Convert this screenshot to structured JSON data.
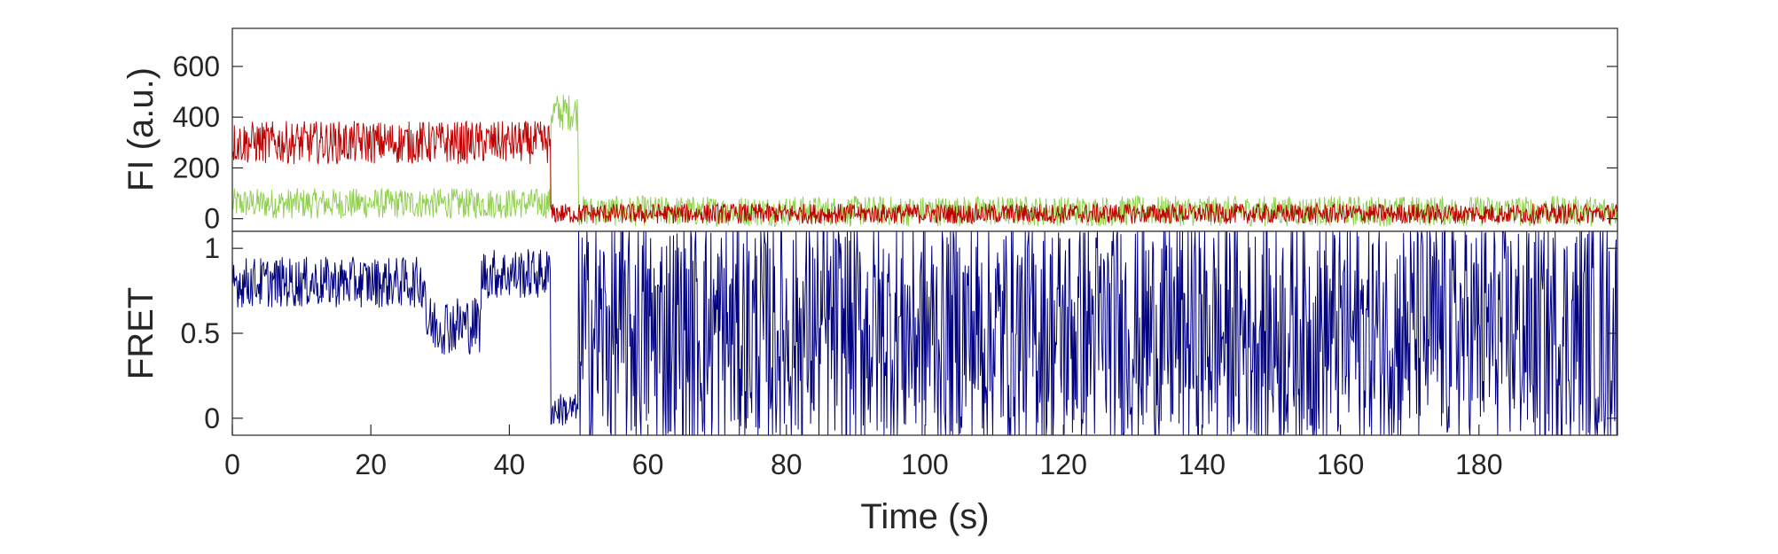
{
  "chart_data": [
    {
      "type": "line",
      "ylabel": "FI (a.u.)",
      "xlim": [
        0,
        200
      ],
      "ylim": [
        -50,
        750
      ],
      "yticks": [
        0,
        200,
        400,
        600
      ],
      "series": [
        {
          "color": "#92d050",
          "segments": [
            {
              "x_start": 0,
              "x_end": 46,
              "mean": 60,
              "noise": 120
            },
            {
              "x_start": 46,
              "x_end": 50,
              "mean": 420,
              "noise": 150
            },
            {
              "x_start": 50,
              "x_end": 200,
              "mean": 30,
              "noise": 120
            }
          ]
        },
        {
          "color": "#c00000",
          "segments": [
            {
              "x_start": 0,
              "x_end": 46,
              "mean": 300,
              "noise": 170
            },
            {
              "x_start": 46,
              "x_end": 200,
              "mean": 20,
              "noise": 80
            }
          ]
        }
      ]
    },
    {
      "type": "line",
      "xlabel": "Time (s)",
      "ylabel": "FRET",
      "xlim": [
        0,
        200
      ],
      "ylim": [
        -0.1,
        1.1
      ],
      "xticks": [
        0,
        20,
        40,
        60,
        80,
        100,
        120,
        140,
        160,
        180
      ],
      "yticks": [
        0,
        0.5,
        1
      ],
      "series": [
        {
          "color": "#000080",
          "segments": [
            {
              "x_start": 0,
              "x_end": 28,
              "mean": 0.8,
              "noise": 0.3
            },
            {
              "x_start": 28,
              "x_end": 36,
              "mean": 0.55,
              "noise": 0.35
            },
            {
              "x_start": 36,
              "x_end": 46,
              "mean": 0.85,
              "noise": 0.3
            },
            {
              "x_start": 46,
              "x_end": 50,
              "mean": 0.05,
              "noise": 0.2
            },
            {
              "x_start": 50,
              "x_end": 200,
              "mean": 0.5,
              "noise": 1.4
            }
          ]
        }
      ]
    }
  ]
}
